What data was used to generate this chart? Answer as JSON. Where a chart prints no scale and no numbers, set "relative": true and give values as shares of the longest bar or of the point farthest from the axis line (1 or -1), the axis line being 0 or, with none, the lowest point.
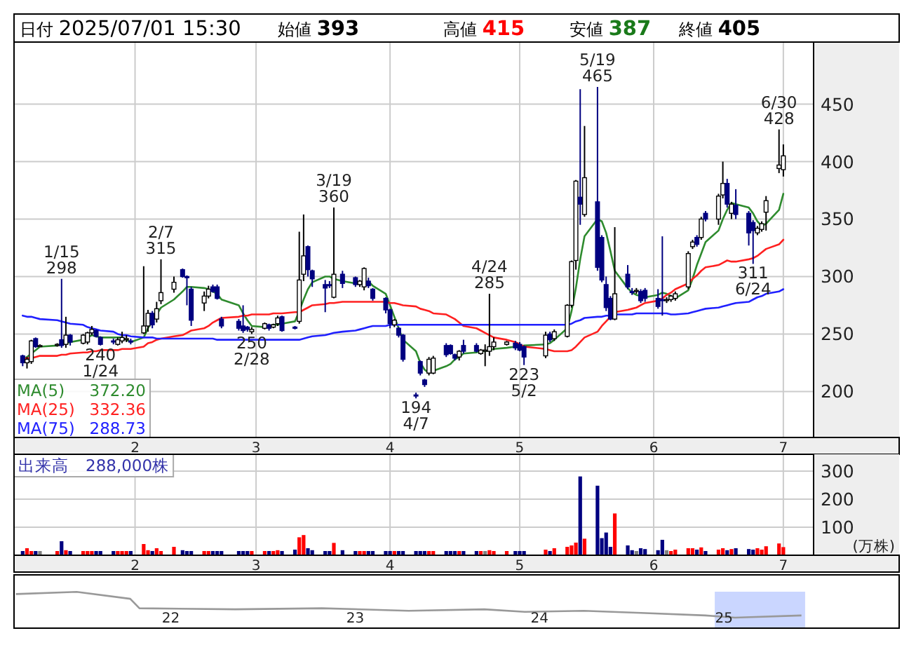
{
  "chart_data": [
    {
      "type": "candlestick",
      "annotations": [
        "日付 2025/07/01 15:30",
        "始値 393",
        "高値 415",
        "安値 387",
        "終値 405",
        {
          "text": "1/15\n298",
          "x": "2025-01-15",
          "y": 298
        },
        {
          "text": "240\n1/24",
          "x": "2025-01-24",
          "y": 240
        },
        {
          "text": "2/7\n315",
          "x": "2025-02-07",
          "y": 315
        },
        {
          "text": "250\n2/28",
          "x": "2025-02-28",
          "y": 250
        },
        {
          "text": "3/19\n360",
          "x": "2025-03-19",
          "y": 360
        },
        {
          "text": "194\n4/7",
          "x": "2025-04-07",
          "y": 194
        },
        {
          "text": "4/24\n285",
          "x": "2025-04-24",
          "y": 285
        },
        {
          "text": "223\n5/2",
          "x": "2025-05-02",
          "y": 223
        },
        {
          "text": "5/19\n465",
          "x": "2025-05-19",
          "y": 465
        },
        {
          "text": "311\n6/24",
          "x": "2025-06-24",
          "y": 311
        },
        {
          "text": "6/30\n428",
          "x": "2025-06-30",
          "y": 428
        }
      ],
      "x": [
        "2025-01-06",
        "2025-01-07",
        "2025-01-08",
        "2025-01-09",
        "2025-01-10",
        "2025-01-14",
        "2025-01-15",
        "2025-01-16",
        "2025-01-17",
        "2025-01-20",
        "2025-01-21",
        "2025-01-22",
        "2025-01-23",
        "2025-01-24",
        "2025-01-27",
        "2025-01-28",
        "2025-01-29",
        "2025-01-30",
        "2025-01-31",
        "2025-02-03",
        "2025-02-04",
        "2025-02-05",
        "2025-02-06",
        "2025-02-07",
        "2025-02-10",
        "2025-02-12",
        "2025-02-13",
        "2025-02-14",
        "2025-02-17",
        "2025-02-18",
        "2025-02-19",
        "2025-02-20",
        "2025-02-21",
        "2025-02-25",
        "2025-02-26",
        "2025-02-27",
        "2025-02-28",
        "2025-03-03",
        "2025-03-04",
        "2025-03-05",
        "2025-03-06",
        "2025-03-07",
        "2025-03-10",
        "2025-03-11",
        "2025-03-12",
        "2025-03-13",
        "2025-03-14",
        "2025-03-17",
        "2025-03-18",
        "2025-03-19",
        "2025-03-21",
        "2025-03-24",
        "2025-03-25",
        "2025-03-26",
        "2025-03-27",
        "2025-03-28",
        "2025-03-31",
        "2025-04-01",
        "2025-04-02",
        "2025-04-03",
        "2025-04-04",
        "2025-04-07",
        "2025-04-08",
        "2025-04-09",
        "2025-04-10",
        "2025-04-11",
        "2025-04-14",
        "2025-04-15",
        "2025-04-16",
        "2025-04-17",
        "2025-04-18",
        "2025-04-21",
        "2025-04-22",
        "2025-04-23",
        "2025-04-24",
        "2025-04-25",
        "2025-04-28",
        "2025-04-30",
        "2025-05-01",
        "2025-05-02",
        "2025-05-07",
        "2025-05-08",
        "2025-05-09",
        "2025-05-12",
        "2025-05-13",
        "2025-05-14",
        "2025-05-15",
        "2025-05-16",
        "2025-05-19",
        "2025-05-20",
        "2025-05-21",
        "2025-05-22",
        "2025-05-23",
        "2025-05-26",
        "2025-05-27",
        "2025-05-28",
        "2025-05-29",
        "2025-05-30",
        "2025-06-02",
        "2025-06-03",
        "2025-06-04",
        "2025-06-05",
        "2025-06-06",
        "2025-06-09",
        "2025-06-10",
        "2025-06-11",
        "2025-06-12",
        "2025-06-13",
        "2025-06-16",
        "2025-06-17",
        "2025-06-18",
        "2025-06-19",
        "2025-06-20",
        "2025-06-23",
        "2025-06-24",
        "2025-06-25",
        "2025-06-26",
        "2025-06-27",
        "2025-06-30",
        "2025-07-01"
      ],
      "ohlc": [
        [
          231,
          232,
          222,
          225
        ],
        [
          225,
          230,
          220,
          228
        ],
        [
          226,
          245,
          224,
          244
        ],
        [
          246,
          247,
          238,
          239
        ],
        [
          240,
          241,
          239,
          240
        ],
        [
          240,
          242,
          239,
          241
        ],
        [
          245,
          298,
          238,
          240
        ],
        [
          241,
          265,
          238,
          249
        ],
        [
          249,
          250,
          240,
          243
        ],
        [
          242,
          250,
          241,
          249
        ],
        [
          243,
          252,
          241,
          251
        ],
        [
          251,
          257,
          249,
          254
        ],
        [
          253,
          254,
          247,
          248
        ],
        [
          247,
          248,
          240,
          241
        ],
        [
          244,
          246,
          241,
          243
        ],
        [
          241,
          247,
          240,
          245
        ],
        [
          244,
          252,
          242,
          247
        ],
        [
          245,
          249,
          243,
          246
        ],
        [
          244,
          246,
          241,
          243
        ],
        [
          251,
          309,
          250,
          257
        ],
        [
          257,
          271,
          252,
          268
        ],
        [
          268,
          270,
          255,
          258
        ],
        [
          263,
          278,
          260,
          272
        ],
        [
          279,
          315,
          276,
          286
        ],
        [
          289,
          300,
          286,
          295
        ],
        [
          306,
          307,
          299,
          300
        ],
        [
          300,
          301,
          275,
          299
        ],
        [
          289,
          291,
          257,
          262
        ],
        [
          277,
          287,
          270,
          283
        ],
        [
          283,
          292,
          281,
          289
        ],
        [
          291,
          293,
          286,
          287
        ],
        [
          291,
          293,
          280,
          281
        ],
        [
          263,
          265,
          255,
          257
        ],
        [
          261,
          263,
          253,
          255
        ],
        [
          257,
          275,
          251,
          253
        ],
        [
          256,
          257,
          252,
          254
        ],
        [
          252,
          256,
          250,
          254
        ],
        [
          255,
          260,
          254,
          259
        ],
        [
          258,
          259,
          253,
          255
        ],
        [
          256,
          259,
          255,
          258
        ],
        [
          259,
          266,
          257,
          264
        ],
        [
          265,
          266,
          252,
          253
        ],
        [
          256,
          257,
          254,
          255
        ],
        [
          261,
          339,
          259,
          297
        ],
        [
          302,
          354,
          296,
          318
        ],
        [
          326,
          327,
          300,
          306
        ],
        [
          305,
          306,
          291,
          298
        ],
        [
          293,
          297,
          269,
          290
        ],
        [
          293,
          296,
          290,
          292
        ],
        [
          282,
          360,
          281,
          302
        ],
        [
          302,
          305,
          290,
          294
        ],
        [
          299,
          300,
          291,
          293
        ],
        [
          293,
          297,
          291,
          296
        ],
        [
          291,
          308,
          288,
          307
        ],
        [
          296,
          299,
          290,
          292
        ],
        [
          289,
          290,
          279,
          281
        ],
        [
          281,
          282,
          268,
          271
        ],
        [
          271,
          272,
          255,
          259
        ],
        [
          258,
          263,
          256,
          262
        ],
        [
          255,
          256,
          247,
          249
        ],
        [
          249,
          250,
          226,
          228
        ],
        [
          197,
          199,
          194,
          196
        ],
        [
          226,
          227,
          214,
          216
        ],
        [
          210,
          211,
          204,
          206
        ],
        [
          216,
          230,
          214,
          228
        ],
        [
          216,
          231,
          215,
          229
        ],
        [
          240,
          242,
          230,
          232
        ],
        [
          240,
          241,
          232,
          233
        ],
        [
          232,
          233,
          227,
          229
        ],
        [
          230,
          236,
          227,
          235
        ],
        [
          240,
          245,
          233,
          235
        ],
        [
          240,
          242,
          234,
          235
        ],
        [
          233,
          237,
          232,
          236
        ],
        [
          236,
          241,
          222,
          236
        ],
        [
          235,
          285,
          231,
          239
        ],
        [
          239,
          247,
          236,
          243
        ],
        [
          241,
          244,
          240,
          243
        ],
        [
          242,
          244,
          236,
          238
        ],
        [
          241,
          243,
          235,
          236
        ],
        [
          239,
          240,
          223,
          230
        ],
        [
          231,
          252,
          229,
          249
        ],
        [
          250,
          252,
          243,
          245
        ],
        [
          246,
          254,
          244,
          252
        ],
        [
          248,
          276,
          247,
          275
        ],
        [
          275,
          314,
          273,
          313
        ],
        [
          314,
          384,
          306,
          383
        ],
        [
          369,
          463,
          345,
          363
        ],
        [
          354,
          431,
          352,
          386
        ],
        [
          365,
          465,
          305,
          308
        ],
        [
          334,
          336,
          295,
          297
        ],
        [
          293,
          300,
          270,
          273
        ],
        [
          281,
          283,
          262,
          263
        ],
        [
          263,
          343,
          262,
          285
        ],
        [
          302,
          310,
          289,
          291
        ],
        [
          287,
          290,
          284,
          286
        ],
        [
          288,
          290,
          285,
          288
        ],
        [
          287,
          289,
          277,
          279
        ],
        [
          288,
          290,
          278,
          281
        ],
        [
          281,
          289,
          272,
          274
        ],
        [
          280,
          335,
          266,
          279
        ],
        [
          280,
          282,
          277,
          280
        ],
        [
          280,
          284,
          278,
          283
        ],
        [
          281,
          287,
          279,
          285
        ],
        [
          291,
          322,
          289,
          320
        ],
        [
          326,
          332,
          324,
          330
        ],
        [
          334,
          336,
          326,
          328
        ],
        [
          334,
          352,
          332,
          350
        ],
        [
          355,
          357,
          348,
          350
        ],
        [
          350,
          372,
          345,
          370
        ],
        [
          371,
          400,
          368,
          381
        ],
        [
          381,
          385,
          360,
          363
        ],
        [
          355,
          365,
          350,
          363
        ],
        [
          362,
          376,
          350,
          354
        ],
        [
          355,
          357,
          327,
          338
        ],
        [
          347,
          349,
          311,
          340
        ],
        [
          338,
          344,
          336,
          342
        ],
        [
          341,
          348,
          339,
          346
        ],
        [
          356,
          370,
          340,
          366
        ],
        [
          394,
          428,
          390,
          397
        ],
        [
          393,
          415,
          387,
          405
        ]
      ],
      "series": [
        {
          "name": "MA(5) 372.20",
          "type": "line",
          "color": "#2e8b2e",
          "values": [
            228,
            230,
            233,
            236,
            239,
            240,
            241,
            242,
            243,
            245,
            247,
            249,
            248,
            247,
            247,
            247,
            247,
            245,
            243,
            247,
            255,
            262,
            267,
            273,
            280,
            287,
            291,
            291,
            290,
            289,
            287,
            285,
            280,
            275,
            268,
            262,
            257,
            256,
            257,
            258,
            258,
            259,
            261,
            270,
            280,
            289,
            295,
            300,
            300,
            298,
            296,
            294,
            294,
            295,
            296,
            292,
            285,
            275,
            265,
            255,
            245,
            235,
            225,
            219,
            216,
            218,
            222,
            224,
            228,
            230,
            233,
            234,
            235,
            235,
            236,
            237,
            238,
            239,
            239,
            240,
            241,
            242,
            245,
            255,
            270,
            290,
            315,
            335,
            350,
            348,
            338,
            322,
            305,
            290,
            286,
            284,
            283,
            282,
            284,
            286,
            285,
            283,
            281,
            288,
            298,
            310,
            320,
            330,
            340,
            350,
            358,
            364,
            363,
            360,
            355,
            348,
            344,
            346,
            358,
            372
          ]
        },
        {
          "name": "MA(25) 332.36",
          "type": "line",
          "color": "#ff2020",
          "values": [
            228,
            229,
            229,
            230,
            231,
            231,
            232,
            232,
            233,
            234,
            234,
            235,
            235,
            236,
            236,
            236,
            237,
            237,
            237,
            239,
            242,
            243,
            245,
            246,
            248,
            249,
            251,
            253,
            255,
            257,
            260,
            262,
            264,
            265,
            266,
            266,
            267,
            267,
            267,
            268,
            268,
            268,
            269,
            269,
            271,
            273,
            275,
            276,
            277,
            277,
            278,
            278,
            278,
            278,
            278,
            278,
            278,
            277,
            277,
            276,
            275,
            274,
            272,
            271,
            270,
            268,
            267,
            265,
            263,
            260,
            257,
            255,
            253,
            251,
            249,
            247,
            245,
            243,
            241,
            239,
            237,
            236,
            235,
            235,
            236,
            239,
            243,
            247,
            252,
            257,
            261,
            265,
            269,
            271,
            272,
            273,
            275,
            277,
            279,
            281,
            284,
            286,
            289,
            294,
            298,
            301,
            305,
            308,
            310,
            312,
            314,
            313,
            313,
            315,
            316,
            318,
            321,
            324,
            328,
            332
          ]
        },
        {
          "name": "MA(75) 288.73",
          "type": "line",
          "color": "#2020ff",
          "values": [
            266,
            265,
            265,
            264,
            263,
            262,
            261,
            260,
            259,
            258,
            256,
            255,
            254,
            253,
            252,
            250,
            249,
            249,
            248,
            247,
            247,
            247,
            246,
            246,
            246,
            246,
            246,
            246,
            246,
            246,
            246,
            245,
            245,
            245,
            245,
            245,
            245,
            245,
            245,
            245,
            245,
            245,
            245,
            245,
            246,
            247,
            248,
            249,
            250,
            251,
            252,
            253,
            254,
            255,
            256,
            257,
            257,
            258,
            258,
            258,
            258,
            258,
            258,
            258,
            258,
            258,
            258,
            258,
            258,
            258,
            258,
            258,
            258,
            258,
            258,
            258,
            258,
            258,
            258,
            258,
            258,
            258,
            258,
            258,
            259,
            261,
            262,
            264,
            265,
            265,
            266,
            266,
            267,
            267,
            267,
            268,
            268,
            268,
            268,
            268,
            268,
            267,
            267,
            268,
            269,
            270,
            271,
            272,
            273,
            274,
            275,
            276,
            277,
            278,
            280,
            282,
            283,
            285,
            287,
            289
          ]
        }
      ],
      "ylim": [
        160,
        504
      ],
      "yticks": [
        200,
        250,
        300,
        350,
        400,
        450
      ],
      "xlim": [
        "2025-01-04",
        "2025-07-08"
      ],
      "xticks": [
        {
          "value": "2025-02-01",
          "label": "2"
        },
        {
          "value": "2025-03-01",
          "label": "3"
        },
        {
          "value": "2025-04-01",
          "label": "4"
        },
        {
          "value": "2025-05-01",
          "label": "5"
        },
        {
          "value": "2025-06-01",
          "label": "6"
        },
        {
          "value": "2025-07-01",
          "label": "7"
        }
      ],
      "grid": true,
      "legend": "bottom left"
    },
    {
      "type": "bar",
      "title": "出来高　288,000株",
      "ylabel": "(万株)",
      "x": [
        "2025-01-06",
        "2025-01-07",
        "2025-01-08",
        "2025-01-09",
        "2025-01-10",
        "2025-01-14",
        "2025-01-15",
        "2025-01-16",
        "2025-01-17",
        "2025-01-20",
        "2025-01-21",
        "2025-01-22",
        "2025-01-23",
        "2025-01-24",
        "2025-01-27",
        "2025-01-28",
        "2025-01-29",
        "2025-01-30",
        "2025-01-31",
        "2025-02-03",
        "2025-02-04",
        "2025-02-05",
        "2025-02-06",
        "2025-02-07",
        "2025-02-10",
        "2025-02-12",
        "2025-02-13",
        "2025-02-14",
        "2025-02-17",
        "2025-02-18",
        "2025-02-19",
        "2025-02-20",
        "2025-02-21",
        "2025-02-25",
        "2025-02-26",
        "2025-02-27",
        "2025-02-28",
        "2025-03-03",
        "2025-03-04",
        "2025-03-05",
        "2025-03-06",
        "2025-03-07",
        "2025-03-10",
        "2025-03-11",
        "2025-03-12",
        "2025-03-13",
        "2025-03-14",
        "2025-03-17",
        "2025-03-18",
        "2025-03-19",
        "2025-03-21",
        "2025-03-24",
        "2025-03-25",
        "2025-03-26",
        "2025-03-27",
        "2025-03-28",
        "2025-03-31",
        "2025-04-01",
        "2025-04-02",
        "2025-04-03",
        "2025-04-04",
        "2025-04-07",
        "2025-04-08",
        "2025-04-09",
        "2025-04-10",
        "2025-04-11",
        "2025-04-14",
        "2025-04-15",
        "2025-04-16",
        "2025-04-17",
        "2025-04-18",
        "2025-04-21",
        "2025-04-22",
        "2025-04-23",
        "2025-04-24",
        "2025-04-25",
        "2025-04-28",
        "2025-04-30",
        "2025-05-01",
        "2025-05-02",
        "2025-05-07",
        "2025-05-08",
        "2025-05-09",
        "2025-05-12",
        "2025-05-13",
        "2025-05-14",
        "2025-05-15",
        "2025-05-16",
        "2025-05-19",
        "2025-05-20",
        "2025-05-21",
        "2025-05-22",
        "2025-05-23",
        "2025-05-26",
        "2025-05-27",
        "2025-05-28",
        "2025-05-29",
        "2025-05-30",
        "2025-06-02",
        "2025-06-03",
        "2025-06-04",
        "2025-06-05",
        "2025-06-06",
        "2025-06-09",
        "2025-06-10",
        "2025-06-11",
        "2025-06-12",
        "2025-06-13",
        "2025-06-16",
        "2025-06-17",
        "2025-06-18",
        "2025-06-19",
        "2025-06-20",
        "2025-06-23",
        "2025-06-24",
        "2025-06-25",
        "2025-06-26",
        "2025-06-27",
        "2025-06-30",
        "2025-07-01"
      ],
      "values": [
        15,
        25,
        15,
        15,
        15,
        15,
        50,
        18,
        15,
        15,
        15,
        15,
        15,
        15,
        15,
        15,
        15,
        15,
        15,
        40,
        18,
        15,
        25,
        15,
        30,
        18,
        15,
        15,
        15,
        15,
        15,
        15,
        15,
        15,
        15,
        15,
        15,
        15,
        15,
        15,
        18,
        15,
        20,
        64,
        72,
        25,
        18,
        15,
        15,
        44,
        18,
        15,
        15,
        15,
        15,
        15,
        15,
        15,
        15,
        15,
        15,
        15,
        15,
        15,
        15,
        15,
        15,
        15,
        15,
        15,
        15,
        15,
        15,
        15,
        18,
        15,
        15,
        15,
        15,
        15,
        20,
        15,
        25,
        30,
        35,
        45,
        281,
        59,
        248,
        61,
        81,
        30,
        149,
        35,
        18,
        15,
        25,
        22,
        18,
        55,
        18,
        15,
        20,
        25,
        25,
        20,
        28,
        15,
        20,
        25,
        18,
        22,
        25,
        22,
        20,
        25,
        20,
        32,
        42,
        29
      ],
      "colors": [
        "#000080",
        "#ff0000",
        "#ff0000",
        "#000080",
        "#808080",
        "#ff0000",
        "#000080",
        "#ff0000",
        "#000080",
        "#ff0000",
        "#ff0000",
        "#ff0000",
        "#000080",
        "#000080",
        "#000080",
        "#ff0000",
        "#ff0000",
        "#ff0000",
        "#000080",
        "#ff0000",
        "#ff0000",
        "#000080",
        "#ff0000",
        "#ff0000",
        "#ff0000",
        "#000080",
        "#000080",
        "#000080",
        "#ff0000",
        "#ff0000",
        "#000080",
        "#000080",
        "#000080",
        "#000080",
        "#000080",
        "#000080",
        "#ff0000",
        "#ff0000",
        "#000080",
        "#ff0000",
        "#ff0000",
        "#000080",
        "#000080",
        "#ff0000",
        "#ff0000",
        "#000080",
        "#000080",
        "#000080",
        "#000080",
        "#ff0000",
        "#000080",
        "#000080",
        "#ff0000",
        "#ff0000",
        "#000080",
        "#000080",
        "#000080",
        "#000080",
        "#ff0000",
        "#000080",
        "#000080",
        "#000080",
        "#000080",
        "#000080",
        "#ff0000",
        "#ff0000",
        "#000080",
        "#000080",
        "#000080",
        "#ff0000",
        "#000080",
        "#000080",
        "#ff0000",
        "#808080",
        "#ff0000",
        "#ff0000",
        "#ff0000",
        "#000080",
        "#000080",
        "#000080",
        "#ff0000",
        "#000080",
        "#ff0000",
        "#ff0000",
        "#ff0000",
        "#ff0000",
        "#000080",
        "#ff0000",
        "#000080",
        "#000080",
        "#000080",
        "#000080",
        "#ff0000",
        "#000080",
        "#000080",
        "#808080",
        "#000080",
        "#000080",
        "#000080",
        "#000080",
        "#808080",
        "#ff0000",
        "#ff0000",
        "#ff0000",
        "#ff0000",
        "#000080",
        "#ff0000",
        "#000080",
        "#ff0000",
        "#ff0000",
        "#000080",
        "#ff0000",
        "#000080",
        "#000080",
        "#000080",
        "#ff0000",
        "#ff0000",
        "#ff0000",
        "#ff0000",
        "#ff0000"
      ],
      "ylim": [
        0,
        360
      ],
      "yticks": [
        100,
        200,
        300
      ],
      "xlim": [
        "2025-01-04",
        "2025-07-08"
      ],
      "xticks": [
        {
          "value": "2025-02-01",
          "label": "2"
        },
        {
          "value": "2025-03-01",
          "label": "3"
        },
        {
          "value": "2025-04-01",
          "label": "4"
        },
        {
          "value": "2025-05-01",
          "label": "5"
        },
        {
          "value": "2025-06-01",
          "label": "6"
        },
        {
          "value": "2025-07-01",
          "label": "7"
        }
      ],
      "grid": true
    },
    {
      "type": "line",
      "relative": true,
      "series": [
        {
          "color": "#999999",
          "x": [
            2021.16,
            2021.49,
            2021.78,
            2021.83,
            2022.35,
            2022.82,
            2023.29,
            2023.7,
            2023.92,
            2024.24,
            2024.55,
            2024.9,
            2025.06,
            2025.42
          ],
          "values": [
            0.94,
            1.0,
            0.81,
            0.55,
            0.52,
            0.55,
            0.48,
            0.52,
            0.45,
            0.48,
            0.42,
            0.35,
            0.29,
            0.35
          ]
        }
      ],
      "xlim": [
        2021.15,
        2025.95
      ],
      "xticks": [
        {
          "value": 2022,
          "label": "22"
        },
        {
          "value": 2023,
          "label": "23"
        },
        {
          "value": 2024,
          "label": "24"
        },
        {
          "value": 2025,
          "label": "25"
        }
      ],
      "bands": [
        {
          "axis": "x",
          "from": 2024.95,
          "to": 2025.44,
          "color": "#b4c4ff"
        }
      ]
    }
  ]
}
